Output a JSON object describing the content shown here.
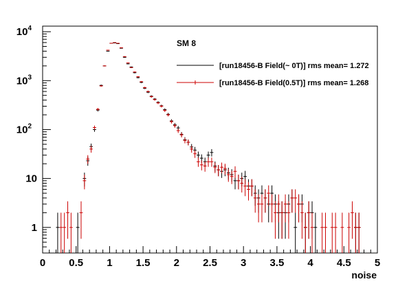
{
  "chart_data": {
    "type": "scatter",
    "title": "SM 8",
    "xlabel": "noise",
    "ylabel": "",
    "xlim": [
      0,
      5
    ],
    "ylim": [
      0.3,
      13000
    ],
    "y_scale": "log",
    "grid": false,
    "legend_position": "top-right",
    "x_ticks": [
      {
        "value": 0,
        "label": "0"
      },
      {
        "value": 0.5,
        "label": "0.5"
      },
      {
        "value": 1,
        "label": "1"
      },
      {
        "value": 1.5,
        "label": "1.5"
      },
      {
        "value": 2,
        "label": "2"
      },
      {
        "value": 2.5,
        "label": "2.5"
      },
      {
        "value": 3,
        "label": "3"
      },
      {
        "value": 3.5,
        "label": "3.5"
      },
      {
        "value": 4,
        "label": "4"
      },
      {
        "value": 4.5,
        "label": "4.5"
      },
      {
        "value": 5,
        "label": "5"
      }
    ],
    "y_ticks": [
      {
        "value": 1,
        "base": "1",
        "exp": ""
      },
      {
        "value": 10,
        "base": "10",
        "exp": ""
      },
      {
        "value": 100,
        "base": "10",
        "exp": "2"
      },
      {
        "value": 1000,
        "base": "10",
        "exp": "3"
      },
      {
        "value": 10000,
        "base": "10",
        "exp": "4"
      }
    ],
    "series": [
      {
        "name": "[run18456-B Field(~ 0T)] rms mean= 1.272",
        "color": "#000000",
        "x": [
          0.225,
          0.525,
          0.625,
          0.675,
          0.725,
          0.775,
          0.825,
          0.875,
          0.925,
          0.975,
          1.025,
          1.075,
          1.125,
          1.175,
          1.225,
          1.275,
          1.325,
          1.375,
          1.425,
          1.475,
          1.525,
          1.575,
          1.625,
          1.675,
          1.725,
          1.775,
          1.825,
          1.875,
          1.925,
          1.975,
          2.025,
          2.075,
          2.125,
          2.175,
          2.225,
          2.275,
          2.325,
          2.375,
          2.425,
          2.475,
          2.525,
          2.575,
          2.625,
          2.675,
          2.725,
          2.775,
          2.825,
          2.875,
          2.925,
          2.975,
          3.025,
          3.075,
          3.125,
          3.175,
          3.225,
          3.275,
          3.325,
          3.375,
          3.425,
          3.475,
          3.525,
          3.575,
          3.625,
          3.675,
          3.725,
          3.775,
          3.825,
          3.875,
          3.925,
          3.975,
          4.025,
          4.075,
          4.675,
          4.725
        ],
        "y": [
          1,
          1,
          10,
          23,
          45,
          100,
          250,
          800,
          2000,
          4000,
          5800,
          5900,
          5700,
          4600,
          3000,
          2200,
          1900,
          1450,
          1150,
          920,
          700,
          580,
          480,
          420,
          360,
          305,
          255,
          205,
          150,
          125,
          108,
          80,
          62,
          55,
          44,
          38,
          30,
          26,
          22,
          30,
          34,
          18,
          15,
          14,
          15,
          13,
          12,
          9,
          9,
          10,
          11,
          7,
          7,
          5,
          4,
          5,
          4,
          3,
          5,
          3,
          2,
          2,
          2,
          3,
          4,
          1,
          3,
          3,
          1,
          2,
          2,
          1,
          1,
          1
        ]
      },
      {
        "name": "[run18456-B Field(0.5T)] rms mean= 1.268",
        "color": "#cc0000",
        "x": [
          0.275,
          0.325,
          0.375,
          0.425,
          0.575,
          0.625,
          0.675,
          0.725,
          0.775,
          0.825,
          0.875,
          0.925,
          0.975,
          1.025,
          1.075,
          1.125,
          1.175,
          1.225,
          1.275,
          1.325,
          1.375,
          1.425,
          1.475,
          1.525,
          1.575,
          1.625,
          1.675,
          1.725,
          1.775,
          1.825,
          1.875,
          1.925,
          1.975,
          2.025,
          2.075,
          2.125,
          2.175,
          2.225,
          2.275,
          2.325,
          2.375,
          2.425,
          2.475,
          2.525,
          2.575,
          2.625,
          2.675,
          2.725,
          2.775,
          2.825,
          2.875,
          2.925,
          2.975,
          3.025,
          3.075,
          3.125,
          3.175,
          3.225,
          3.275,
          3.325,
          3.375,
          3.425,
          3.475,
          3.525,
          3.575,
          3.625,
          3.675,
          3.725,
          3.775,
          3.825,
          3.875,
          3.925,
          3.975,
          4.025,
          4.175,
          4.225,
          4.325,
          4.375,
          4.475,
          4.575,
          4.625,
          4.675,
          4.725
        ],
        "y": [
          1,
          1,
          2,
          1,
          2,
          9,
          25,
          40,
          110,
          260,
          780,
          2000,
          4200,
          5800,
          6000,
          5800,
          4700,
          3100,
          2300,
          1850,
          1500,
          1200,
          950,
          720,
          600,
          470,
          410,
          350,
          300,
          245,
          200,
          145,
          120,
          95,
          78,
          60,
          55,
          40,
          32,
          22,
          19,
          18,
          22,
          22,
          17,
          15,
          17,
          16,
          12,
          11,
          14,
          9,
          8,
          7,
          6,
          7,
          4,
          3,
          3,
          4,
          5,
          3,
          2,
          3,
          2,
          3,
          2,
          4,
          4,
          3,
          2,
          1,
          2,
          1,
          1,
          1,
          1,
          1,
          1,
          1,
          2,
          1,
          1
        ]
      }
    ]
  }
}
